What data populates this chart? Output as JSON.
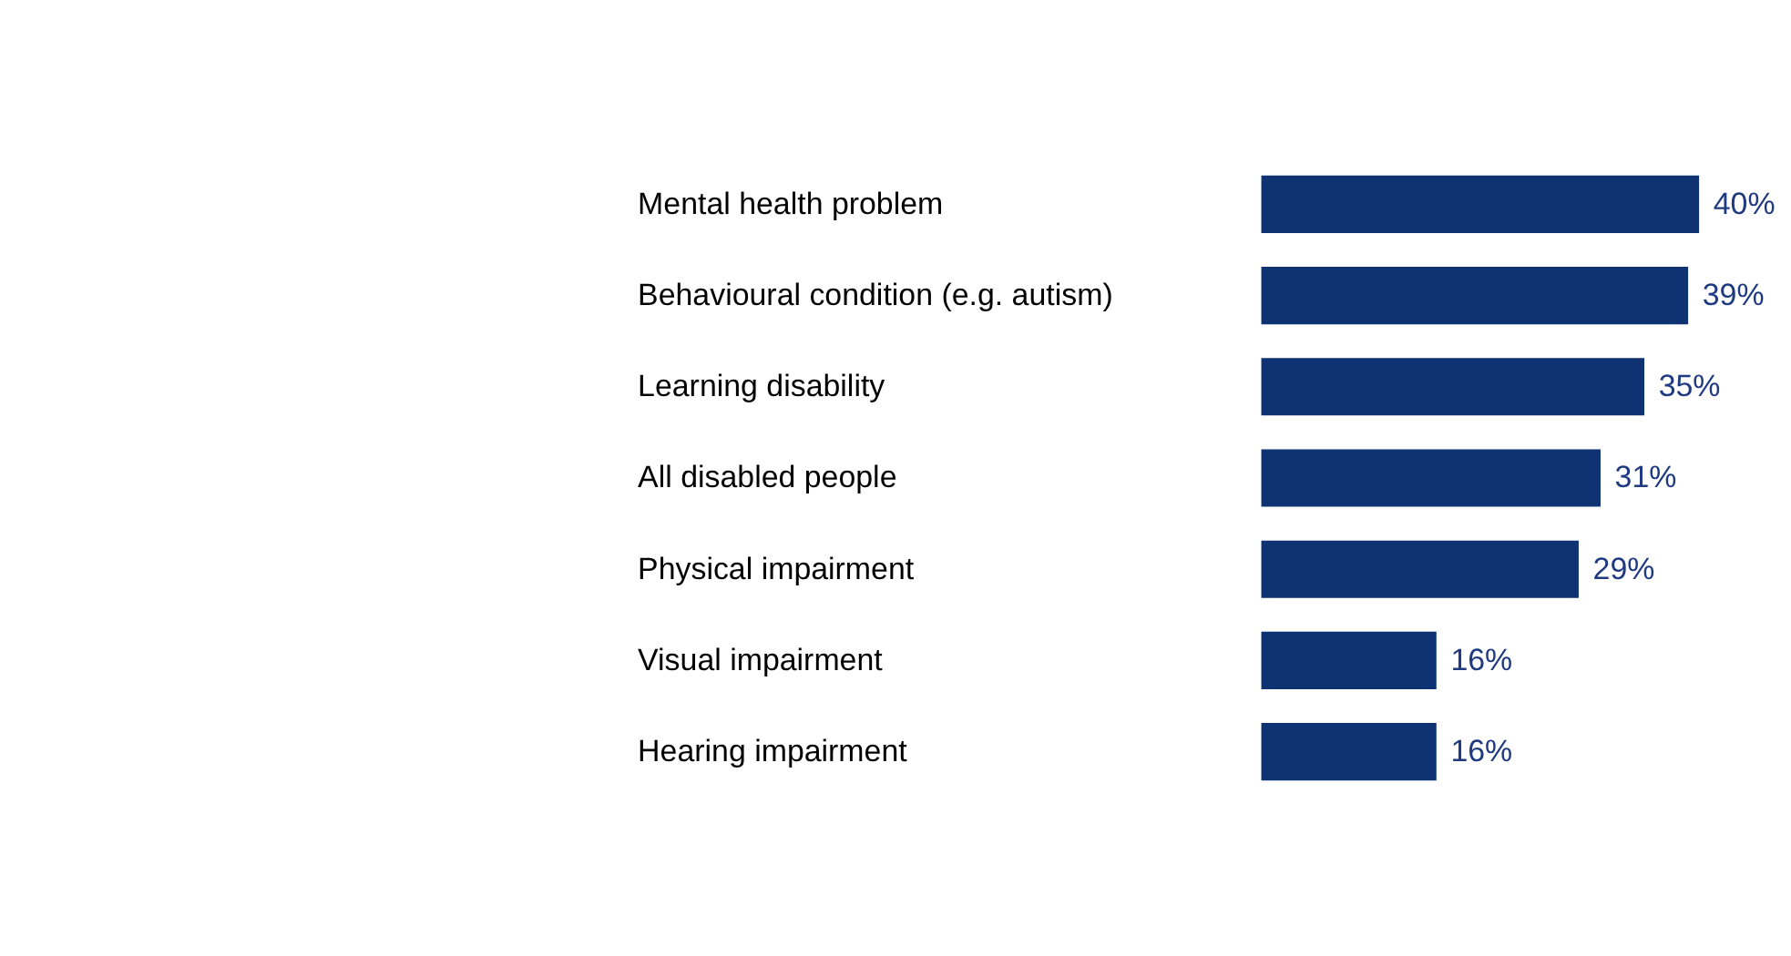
{
  "chart_data": {
    "type": "bar",
    "orientation": "horizontal",
    "categories": [
      "Mental health problem",
      "Behavioural condition (e.g. autism)",
      "Learning disability",
      "All disabled people",
      "Physical impairment",
      "Visual impairment",
      "Hearing impairment"
    ],
    "values": [
      40,
      39,
      35,
      31,
      29,
      16,
      16
    ],
    "value_labels": [
      "40%",
      "39%",
      "35%",
      "31%",
      "29%",
      "16%",
      "16%"
    ],
    "color": "#0e3272"
  }
}
